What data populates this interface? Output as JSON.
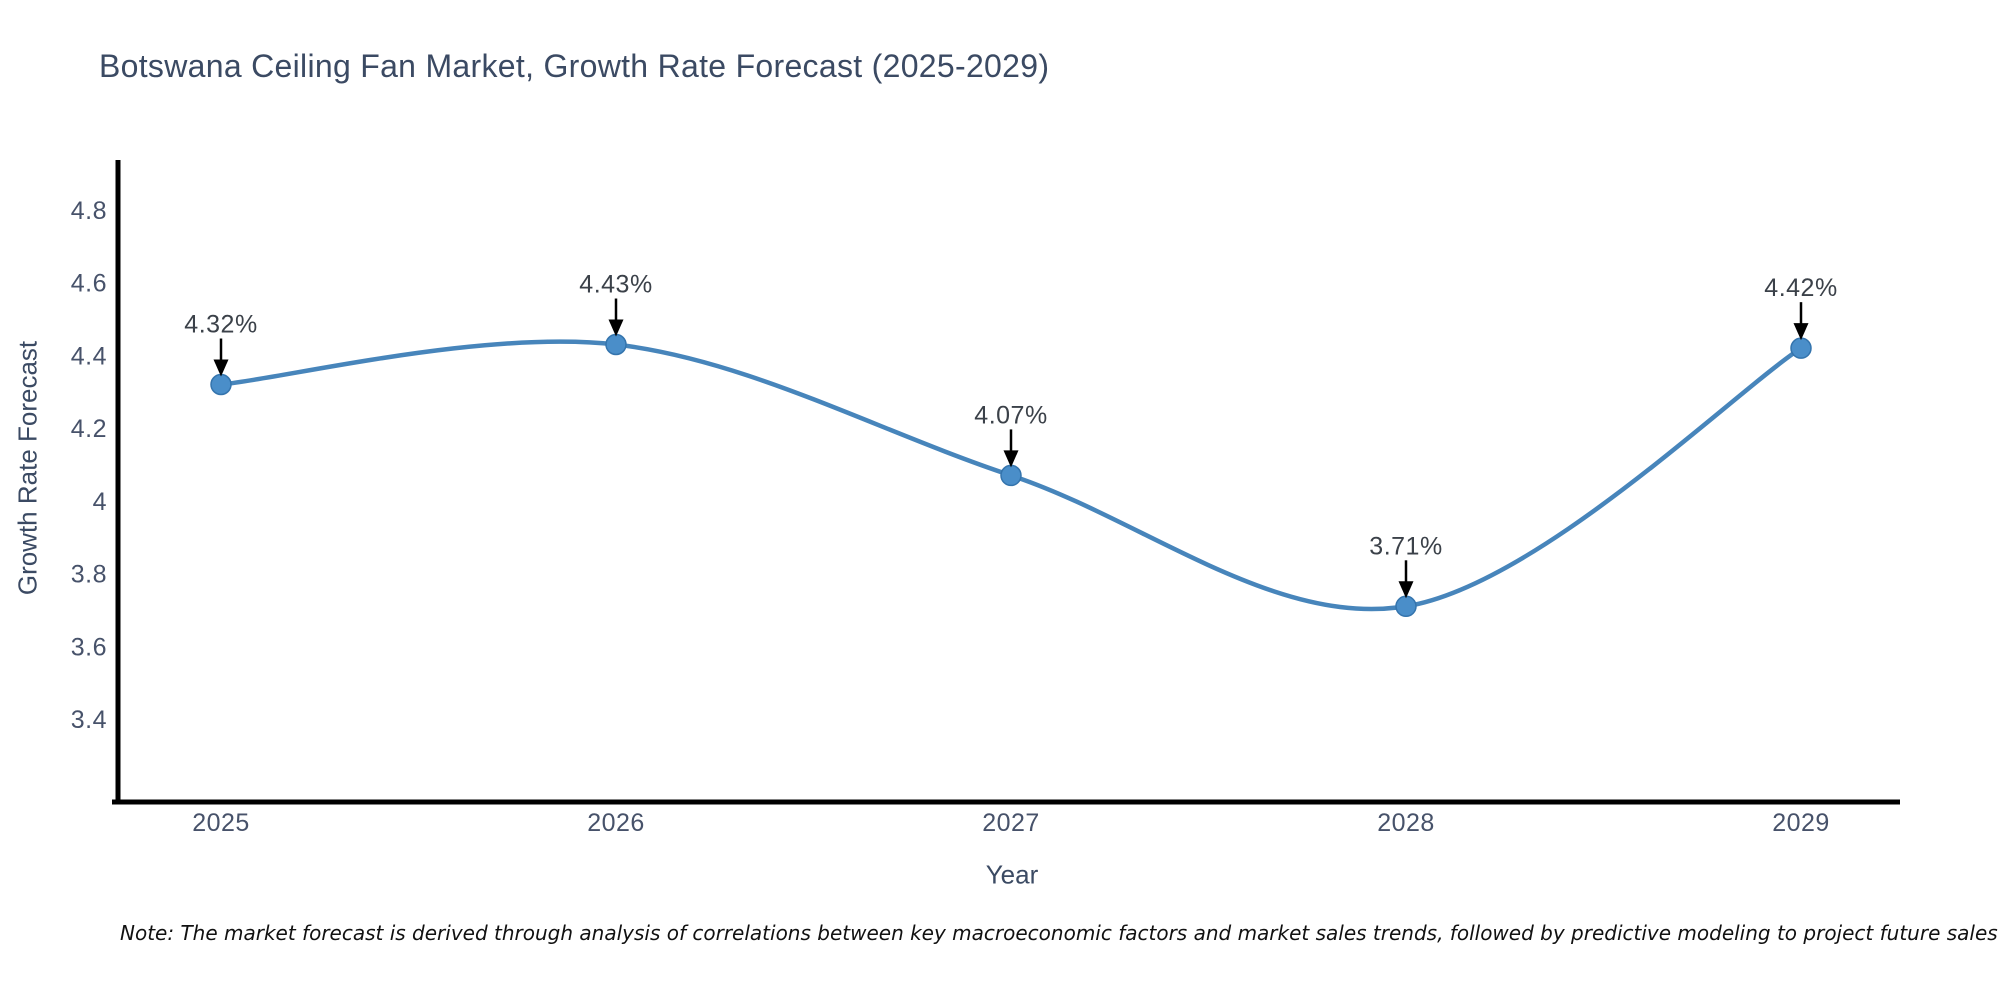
{
  "chart_data": {
    "type": "line",
    "title": "Botswana Ceiling Fan Market, Growth Rate Forecast (2025-2029)",
    "xlabel": "Year",
    "ylabel": "Growth Rate Forecast",
    "categories": [
      2025,
      2026,
      2027,
      2028,
      2029
    ],
    "series": [
      {
        "name": "Growth Rate Forecast",
        "values": [
          4.32,
          4.43,
          4.07,
          3.71,
          4.42
        ],
        "point_labels": [
          "4.32%",
          "4.43%",
          "4.07%",
          "3.71%",
          "4.42%"
        ]
      }
    ],
    "ytick_labels": [
      "3.4",
      "3.6",
      "3.8",
      "4",
      "4.2",
      "4.4",
      "4.6",
      "4.8"
    ],
    "yticks": [
      3.4,
      3.6,
      3.8,
      4.0,
      4.2,
      4.4,
      4.6,
      4.8
    ],
    "xtick_labels": [
      "2025",
      "2026",
      "2027",
      "2028",
      "2029"
    ],
    "ylim": [
      3.17,
      4.94
    ],
    "xlim": [
      2024.74,
      2029.25
    ],
    "grid": false,
    "legend": false,
    "line_shape": "spline",
    "annotations_have_arrows": true,
    "note": "Note: The market forecast is derived through analysis of correlations between key macroeconomic factors and market sales trends, followed by predictive modeling to project future sales"
  },
  "colors": {
    "line": "#4785bb",
    "marker_fill": "#4a8ec9",
    "marker_stroke": "#3474ad",
    "axis_line": "#000000",
    "arrow": "#000000",
    "title_text": "#3b4a63",
    "tick_text": "#47526a",
    "annotation_text": "#3b4149",
    "note_text": "#111111",
    "background": "#ffffff"
  }
}
